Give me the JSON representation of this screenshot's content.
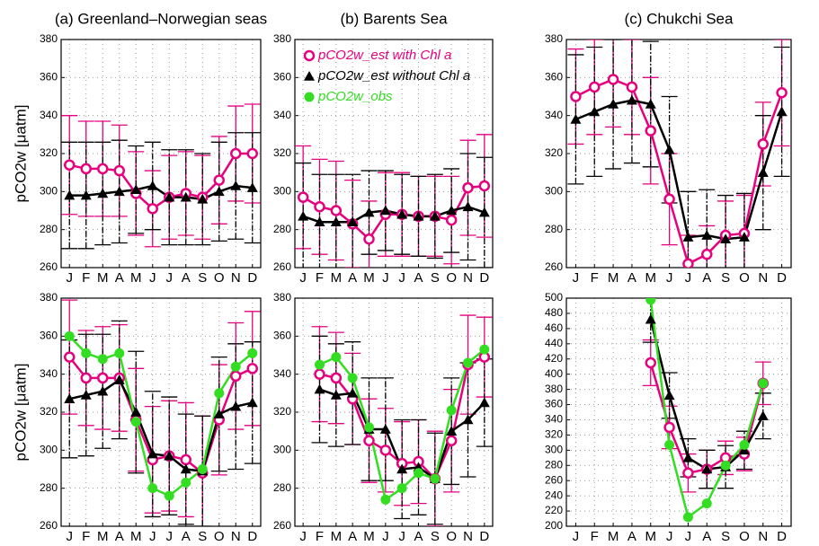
{
  "chart_data": [
    {
      "type": "line",
      "title": "(a) Greenland–Norwegian seas",
      "ylabel": "pCO2w [μatm]",
      "categories": [
        "J",
        "F",
        "M",
        "A",
        "M",
        "J",
        "J",
        "A",
        "S",
        "O",
        "N",
        "D"
      ],
      "ylim": [
        260,
        380
      ],
      "yticks": [
        260,
        280,
        300,
        320,
        340,
        360,
        380
      ],
      "grid": true,
      "series": [
        {
          "color": "#e6007e",
          "marker": "open-circle",
          "values": [
            314,
            312,
            312,
            311,
            299,
            291,
            297,
            299,
            297,
            306,
            320,
            320
          ],
          "errors": [
            26,
            25,
            25,
            24,
            22,
            20,
            22,
            22,
            22,
            23,
            25,
            26
          ]
        },
        {
          "color": "#000000",
          "marker": "triangle",
          "values": [
            298,
            298,
            299,
            300,
            301,
            303,
            297,
            297,
            296,
            300,
            303,
            302
          ],
          "errors": [
            28,
            28,
            27,
            27,
            23,
            23,
            25,
            25,
            24,
            26,
            28,
            29
          ]
        }
      ]
    },
    {
      "type": "line",
      "title": "(b) Barents Sea",
      "categories": [
        "J",
        "F",
        "M",
        "A",
        "M",
        "J",
        "J",
        "A",
        "S",
        "O",
        "N",
        "D"
      ],
      "ylim": [
        260,
        380
      ],
      "yticks": [
        260,
        280,
        300,
        320,
        340,
        360,
        380
      ],
      "grid": true,
      "legend": [
        {
          "name": "pCO2w_est with Chl a",
          "color": "#e6007e",
          "marker": "open-circle"
        },
        {
          "name": "pCO2w_est without Chl a",
          "color": "#000000",
          "marker": "triangle"
        },
        {
          "name": "pCO2w_obs",
          "color": "#33dd22",
          "marker": "circle"
        }
      ],
      "series": [
        {
          "color": "#e6007e",
          "marker": "open-circle",
          "values": [
            297,
            292,
            290,
            283,
            275,
            288,
            288,
            287,
            287,
            285,
            302,
            303
          ],
          "errors": [
            27,
            25,
            26,
            23,
            20,
            22,
            22,
            21,
            21,
            23,
            25,
            27
          ]
        },
        {
          "color": "#000000",
          "marker": "triangle",
          "values": [
            287,
            284,
            284,
            284,
            289,
            290,
            288,
            287,
            287,
            290,
            292,
            289
          ],
          "errors": [
            28,
            25,
            25,
            25,
            22,
            21,
            21,
            21,
            22,
            22,
            28,
            29
          ]
        }
      ]
    },
    {
      "type": "line",
      "title": "(c) Chukchi Sea",
      "categories": [
        "J",
        "F",
        "M",
        "A",
        "M",
        "J",
        "J",
        "A",
        "S",
        "O",
        "N",
        "D"
      ],
      "ylim": [
        260,
        380
      ],
      "yticks": [
        260,
        280,
        300,
        320,
        340,
        360,
        380
      ],
      "grid": true,
      "series": [
        {
          "color": "#e6007e",
          "marker": "open-circle",
          "values": [
            350,
            355,
            359,
            355,
            332,
            296,
            262,
            267,
            277,
            278,
            325,
            352
          ],
          "errors": [
            25,
            25,
            25,
            25,
            28,
            24,
            15,
            15,
            18,
            20,
            22,
            28
          ]
        },
        {
          "color": "#000000",
          "marker": "triangle",
          "values": [
            338,
            342,
            346,
            348,
            346,
            322,
            276,
            277,
            275,
            276,
            310,
            342
          ],
          "errors": [
            34,
            34,
            34,
            33,
            33,
            28,
            24,
            24,
            23,
            23,
            30,
            34
          ]
        }
      ]
    },
    {
      "type": "line",
      "ylabel": "pCO2w [μatm]",
      "categories": [
        "J",
        "F",
        "M",
        "A",
        "M",
        "J",
        "J",
        "A",
        "S",
        "O",
        "N",
        "D"
      ],
      "ylim": [
        260,
        380
      ],
      "yticks": [
        260,
        280,
        300,
        320,
        340,
        360,
        380
      ],
      "grid": true,
      "series": [
        {
          "color": "#e6007e",
          "marker": "open-circle",
          "values": [
            349,
            338,
            338,
            338,
            316,
            295,
            297,
            295,
            288,
            316,
            339,
            343
          ],
          "errors": [
            30,
            25,
            27,
            28,
            27,
            28,
            29,
            30,
            30,
            29,
            28,
            30
          ]
        },
        {
          "color": "#000000",
          "marker": "triangle",
          "values": [
            327,
            329,
            331,
            337,
            320,
            298,
            297,
            290,
            289,
            319,
            323,
            325
          ],
          "errors": [
            31,
            32,
            30,
            31,
            32,
            33,
            31,
            29,
            29,
            30,
            33,
            32
          ]
        },
        {
          "color": "#33dd22",
          "marker": "circle",
          "values": [
            360,
            351,
            348,
            351,
            315,
            280,
            276,
            283,
            290,
            330,
            344,
            351
          ]
        }
      ]
    },
    {
      "type": "line",
      "categories": [
        "J",
        "F",
        "M",
        "A",
        "M",
        "J",
        "J",
        "A",
        "S",
        "O",
        "N",
        "D"
      ],
      "ylim": [
        260,
        380
      ],
      "yticks": [
        260,
        280,
        300,
        320,
        340,
        360,
        380
      ],
      "grid": true,
      "series": [
        {
          "color": "#e6007e",
          "marker": "open-circle",
          "values": [
            null,
            340,
            338,
            327,
            305,
            300,
            293,
            294,
            285,
            305,
            345,
            349
          ],
          "errors": [
            null,
            25,
            24,
            24,
            22,
            22,
            22,
            22,
            25,
            27,
            26,
            21
          ]
        },
        {
          "color": "#000000",
          "marker": "triangle",
          "values": [
            null,
            332,
            329,
            330,
            311,
            311,
            290,
            291,
            285,
            310,
            316,
            325
          ],
          "errors": [
            null,
            28,
            27,
            27,
            27,
            27,
            26,
            25,
            24,
            28,
            30,
            23
          ]
        },
        {
          "color": "#33dd22",
          "marker": "circle",
          "values": [
            null,
            345,
            349,
            338,
            312,
            274,
            280,
            288,
            285,
            321,
            346,
            353
          ]
        }
      ]
    },
    {
      "type": "line",
      "categories": [
        "J",
        "F",
        "M",
        "A",
        "M",
        "J",
        "J",
        "A",
        "S",
        "O",
        "N",
        "D"
      ],
      "ylim": [
        200,
        500
      ],
      "yticks": [
        200,
        220,
        240,
        260,
        280,
        300,
        320,
        340,
        360,
        380,
        400,
        420,
        440,
        460,
        480,
        500
      ],
      "grid": true,
      "series": [
        {
          "color": "#e6007e",
          "marker": "open-circle",
          "values": [
            null,
            null,
            null,
            null,
            415,
            330,
            270,
            275,
            290,
            295,
            388,
            null
          ],
          "errors": [
            null,
            null,
            null,
            null,
            30,
            28,
            25,
            25,
            22,
            22,
            28,
            null
          ]
        },
        {
          "color": "#000000",
          "marker": "triangle",
          "values": [
            null,
            null,
            null,
            null,
            472,
            372,
            290,
            275,
            278,
            300,
            345,
            null
          ],
          "errors": [
            null,
            null,
            null,
            null,
            30,
            30,
            25,
            25,
            28,
            25,
            30,
            null
          ]
        },
        {
          "color": "#33dd22",
          "marker": "circle",
          "values": [
            null,
            null,
            null,
            null,
            498,
            307,
            212,
            230,
            280,
            307,
            388,
            null
          ]
        }
      ]
    }
  ]
}
